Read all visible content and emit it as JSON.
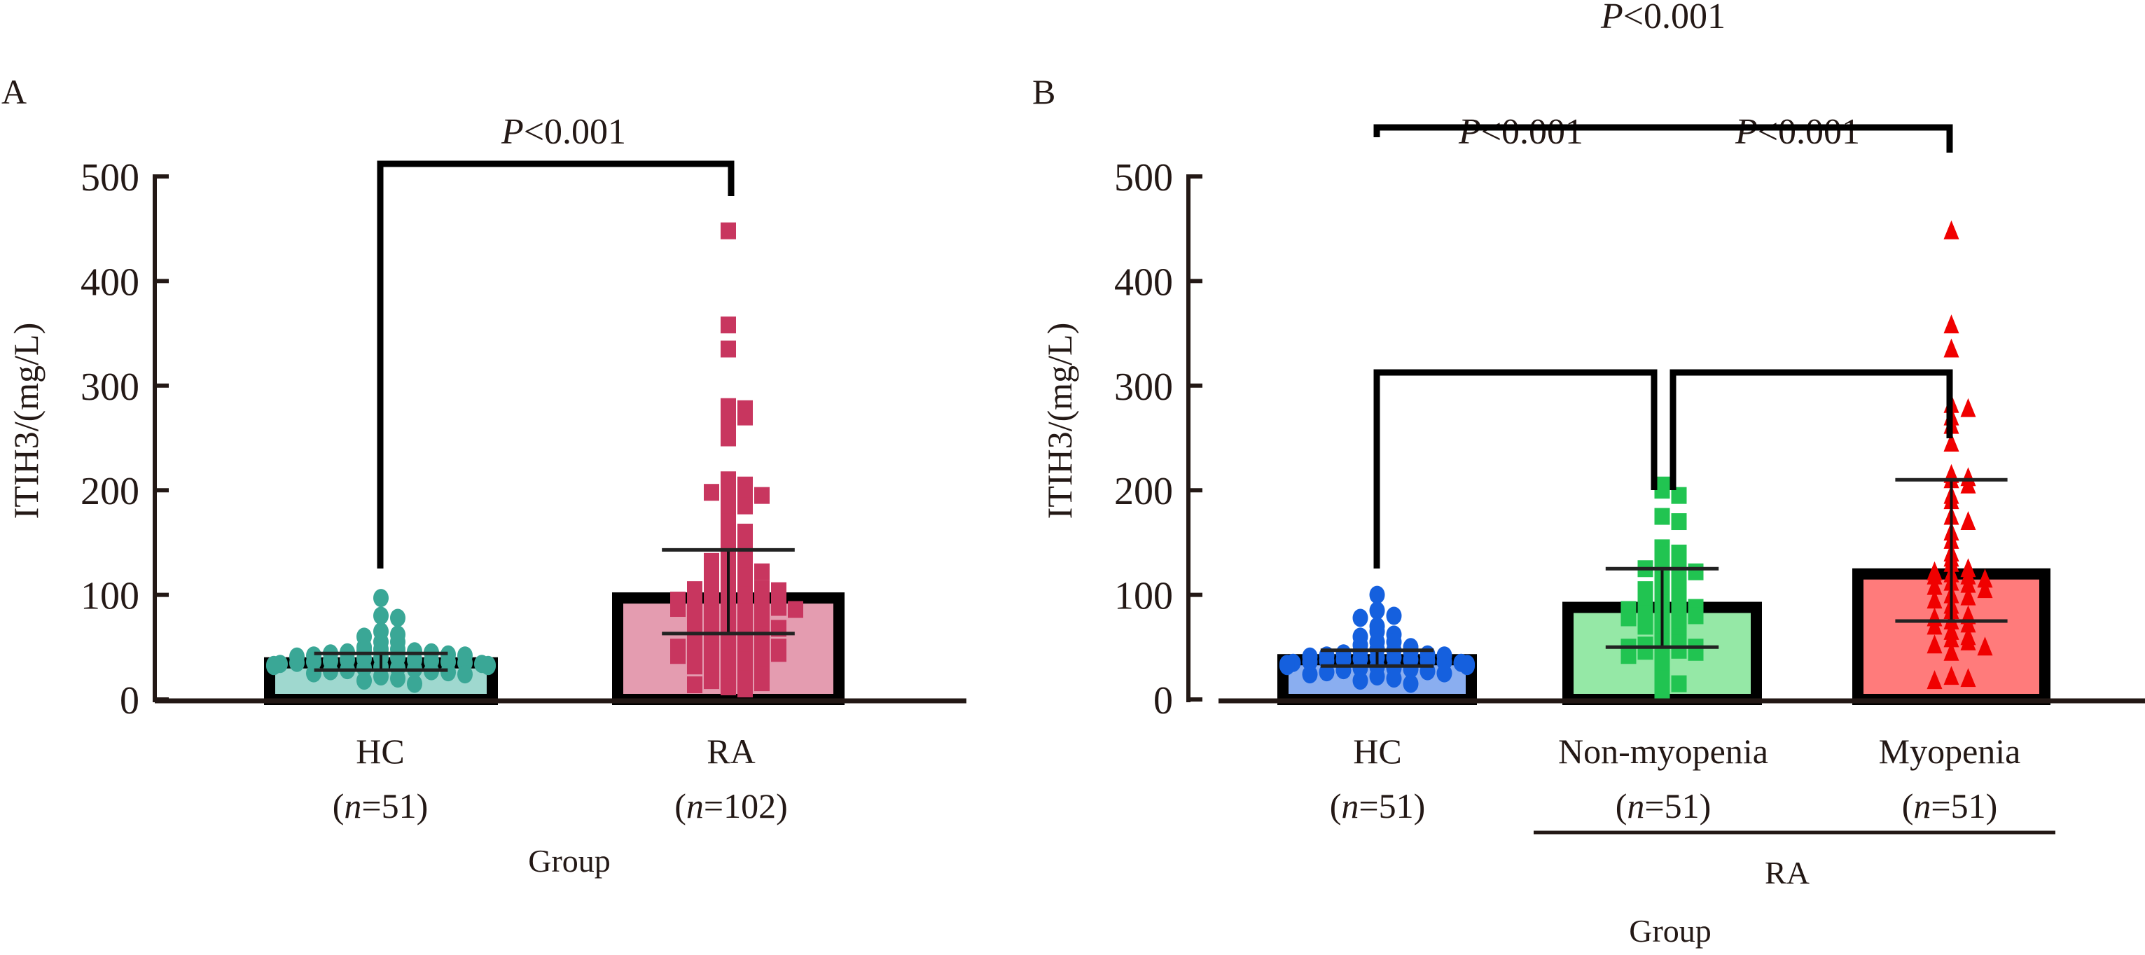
{
  "chart_data": [
    {
      "panel": "A",
      "type": "bar",
      "subtype": "bar with scatter points and SD error bars",
      "title": "",
      "ylabel": "ITIH3/(mg/L)",
      "xlabel": "Group",
      "ylim": [
        0,
        500
      ],
      "yticks": [
        0,
        100,
        200,
        300,
        400,
        500
      ],
      "grid": false,
      "categories": [
        "HC",
        "RA"
      ],
      "category_n": [
        "(n=51)",
        "(n=102)"
      ],
      "bars": [
        {
          "name": "HC",
          "n": 51,
          "mean": 35,
          "err_low": 28,
          "err_high": 44,
          "fill": "#9fd8cf",
          "point_color": "#3aa796",
          "marker": "circle"
        },
        {
          "name": "RA",
          "n": 102,
          "mean": 97,
          "err_low": 63,
          "err_high": 143,
          "fill": "#e49cb0",
          "point_color": "#c8365f",
          "marker": "square"
        }
      ],
      "points": {
        "HC": [
          97,
          80,
          78,
          65,
          62,
          60,
          55,
          55,
          50,
          48,
          48,
          47,
          46,
          45,
          45,
          44,
          43,
          42,
          42,
          41,
          40,
          40,
          39,
          38,
          38,
          37,
          37,
          36,
          36,
          35,
          35,
          34,
          34,
          33,
          33,
          32,
          32,
          31,
          30,
          30,
          29,
          28,
          27,
          27,
          26,
          25,
          24,
          22,
          20,
          18,
          15
        ],
        "RA": [
          448,
          358,
          335,
          280,
          278,
          272,
          270,
          260,
          250,
          210,
          205,
          202,
          200,
          198,
          195,
          190,
          185,
          180,
          170,
          165,
          160,
          155,
          150,
          145,
          140,
          138,
          135,
          132,
          130,
          128,
          125,
          122,
          120,
          118,
          115,
          112,
          110,
          108,
          106,
          105,
          104,
          102,
          100,
          99,
          98,
          97,
          96,
          95,
          94,
          93,
          92,
          90,
          89,
          88,
          87,
          86,
          85,
          84,
          82,
          80,
          78,
          76,
          75,
          74,
          72,
          70,
          68,
          66,
          65,
          64,
          62,
          60,
          58,
          56,
          55,
          54,
          52,
          50,
          50,
          48,
          48,
          47,
          46,
          45,
          44,
          42,
          40,
          38,
          36,
          35,
          32,
          30,
          28,
          26,
          24,
          22,
          20,
          18,
          16,
          14,
          12,
          10
        ]
      },
      "annotations": [
        {
          "text": "P<0.001",
          "between": [
            "HC",
            "RA"
          ]
        }
      ]
    },
    {
      "panel": "B",
      "type": "bar",
      "subtype": "bar with scatter points and SD error bars",
      "title": "",
      "ylabel": "ITIH3/(mg/L)",
      "xlabel": "Group",
      "group_label": "RA",
      "ylim": [
        0,
        500
      ],
      "yticks": [
        0,
        100,
        200,
        300,
        400,
        500
      ],
      "grid": false,
      "categories": [
        "HC",
        "Non-myopenia",
        "Myopenia"
      ],
      "category_n": [
        "(n=51)",
        "(n=51)",
        "(n=51)"
      ],
      "bars": [
        {
          "name": "HC",
          "n": 51,
          "mean": 38,
          "err_low": 32,
          "err_high": 47,
          "fill": "#8aaef0",
          "point_color": "#1560de",
          "marker": "circle"
        },
        {
          "name": "Non-myopenia",
          "n": 51,
          "mean": 88,
          "err_low": 50,
          "err_high": 125,
          "fill": "#95e8a6",
          "point_color": "#21c451",
          "marker": "square"
        },
        {
          "name": "Myopenia",
          "n": 51,
          "mean": 120,
          "err_low": 75,
          "err_high": 210,
          "fill": "#ff7b7b",
          "point_color": "#f00000",
          "marker": "triangle"
        }
      ],
      "points": {
        "HC": [
          100,
          85,
          80,
          78,
          70,
          65,
          62,
          60,
          55,
          55,
          52,
          50,
          48,
          47,
          46,
          45,
          44,
          43,
          42,
          42,
          41,
          40,
          40,
          39,
          38,
          38,
          37,
          37,
          36,
          36,
          35,
          35,
          34,
          34,
          33,
          33,
          32,
          32,
          31,
          30,
          30,
          29,
          28,
          27,
          26,
          25,
          24,
          22,
          20,
          18,
          15
        ],
        "Non-myopenia": [
          205,
          200,
          195,
          175,
          170,
          145,
          140,
          138,
          135,
          130,
          128,
          125,
          122,
          120,
          118,
          110,
          108,
          105,
          100,
          98,
          95,
          92,
          90,
          88,
          88,
          86,
          85,
          84,
          82,
          80,
          78,
          75,
          72,
          70,
          65,
          60,
          55,
          54,
          52,
          50,
          50,
          48,
          47,
          46,
          45,
          42,
          40,
          30,
          20,
          15,
          8
        ],
        "Myopenia": [
          448,
          358,
          335,
          282,
          278,
          270,
          262,
          245,
          215,
          212,
          210,
          205,
          195,
          190,
          175,
          170,
          160,
          152,
          140,
          135,
          130,
          125,
          122,
          120,
          118,
          118,
          115,
          112,
          110,
          108,
          105,
          100,
          98,
          95,
          90,
          85,
          80,
          78,
          75,
          72,
          70,
          65,
          60,
          58,
          55,
          52,
          50,
          45,
          22,
          20,
          18
        ]
      },
      "annotations": [
        {
          "text": "P<0.001",
          "between": [
            "HC",
            "Myopenia"
          ]
        },
        {
          "text": "P<0.001",
          "between": [
            "HC",
            "Non-myopenia"
          ]
        },
        {
          "text": "P<0.001",
          "between": [
            "Non-myopenia",
            "Myopenia"
          ]
        }
      ]
    }
  ],
  "panels": {
    "A": {
      "label": "A",
      "ylabel": "ITIH3/(mg/L)",
      "xlabel": "Group",
      "pvalue": "<0.001",
      "pvalue_prefix": "P",
      "cat_names": [
        "HC",
        "RA"
      ],
      "cat_n_prefix": [
        "(",
        "("
      ],
      "cat_n_italic": [
        "n",
        "n"
      ],
      "cat_n_rest": [
        "=51)",
        "=102)"
      ]
    },
    "B": {
      "label": "B",
      "ylabel": "ITIH3/(mg/L)",
      "xlabel": "Group",
      "group_label": "RA",
      "pvalue_prefix": "P",
      "pvalues": [
        "<0.001",
        "<0.001",
        "<0.001"
      ],
      "cat_names": [
        "HC",
        "Non-myopenia",
        "Myopenia"
      ],
      "cat_n_rest": [
        "=51)",
        "=51)",
        "=51)"
      ]
    },
    "tick_labels": [
      "0",
      "100",
      "200",
      "300",
      "400",
      "500"
    ]
  }
}
